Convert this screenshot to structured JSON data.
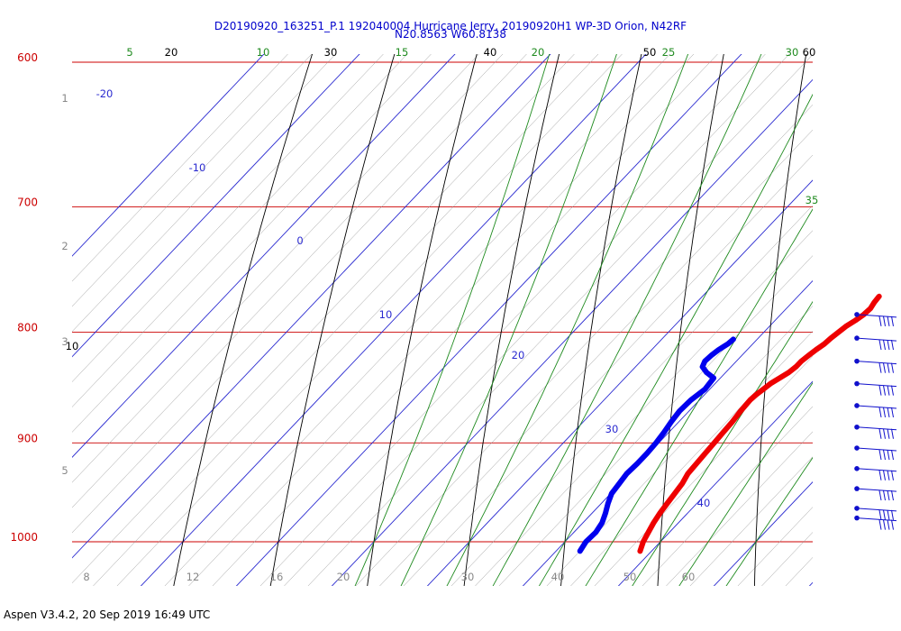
{
  "header": {
    "title_line1": "D20190920_163251_P.1 192040004 Hurricane Jerry, 20190920H1 WP-3D Orion, N42RF",
    "title_line2": "N20.8563 W60.8138"
  },
  "footer": {
    "version": "Aspen V3.4.2, 20 Sep 2019  16:49 UTC"
  },
  "chart_data": {
    "type": "skew-t",
    "pressure_levels": [
      "600",
      "700",
      "800",
      "900",
      "1000"
    ],
    "height_labels": [
      "1",
      "2",
      "3",
      "5"
    ],
    "temperature_ticks_bottom": [
      "8",
      "12",
      "16",
      "20",
      "30",
      "40",
      "50",
      "60"
    ],
    "isotherm_labels": [
      "-20",
      "-10",
      "0",
      "10",
      "20",
      "30",
      "40"
    ],
    "dry_adiabat_labels": [
      "10",
      "20",
      "30",
      "40",
      "50",
      "60"
    ],
    "moist_adiabat_labels": [
      "5",
      "10",
      "15",
      "20",
      "25",
      "30",
      "35"
    ],
    "temperature_profile": [
      {
        "p": 770,
        "t": 28.5
      },
      {
        "p": 775,
        "t": 28.6
      },
      {
        "p": 780,
        "t": 28.8
      },
      {
        "p": 785,
        "t": 28.7
      },
      {
        "p": 790,
        "t": 28.4
      },
      {
        "p": 795,
        "t": 28.0
      },
      {
        "p": 800,
        "t": 27.8
      },
      {
        "p": 805,
        "t": 27.6
      },
      {
        "p": 810,
        "t": 27.5
      },
      {
        "p": 815,
        "t": 27.2
      },
      {
        "p": 820,
        "t": 27.0
      },
      {
        "p": 825,
        "t": 26.8
      },
      {
        "p": 830,
        "t": 26.8
      },
      {
        "p": 835,
        "t": 26.6
      },
      {
        "p": 840,
        "t": 26.2
      },
      {
        "p": 845,
        "t": 25.8
      },
      {
        "p": 850,
        "t": 25.6
      },
      {
        "p": 855,
        "t": 25.4
      },
      {
        "p": 860,
        "t": 25.3
      },
      {
        "p": 870,
        "t": 25.4
      },
      {
        "p": 880,
        "t": 25.6
      },
      {
        "p": 890,
        "t": 25.7
      },
      {
        "p": 900,
        "t": 25.8
      },
      {
        "p": 910,
        "t": 25.9
      },
      {
        "p": 920,
        "t": 26.0
      },
      {
        "p": 930,
        "t": 26.1
      },
      {
        "p": 940,
        "t": 26.5
      },
      {
        "p": 950,
        "t": 26.7
      },
      {
        "p": 960,
        "t": 26.9
      },
      {
        "p": 970,
        "t": 27.1
      },
      {
        "p": 980,
        "t": 27.4
      },
      {
        "p": 990,
        "t": 27.8
      },
      {
        "p": 1000,
        "t": 28.2
      },
      {
        "p": 1010,
        "t": 28.8
      }
    ],
    "dewpoint_profile": [
      {
        "p": 806,
        "td": 17.5
      },
      {
        "p": 810,
        "td": 17.4
      },
      {
        "p": 815,
        "td": 17.0
      },
      {
        "p": 820,
        "td": 16.8
      },
      {
        "p": 825,
        "td": 16.7
      },
      {
        "p": 830,
        "td": 17.0
      },
      {
        "p": 835,
        "td": 18.0
      },
      {
        "p": 840,
        "td": 19.3
      },
      {
        "p": 850,
        "td": 19.5
      },
      {
        "p": 860,
        "td": 19.1
      },
      {
        "p": 870,
        "td": 19.0
      },
      {
        "p": 880,
        "td": 19.2
      },
      {
        "p": 890,
        "td": 19.5
      },
      {
        "p": 900,
        "td": 19.7
      },
      {
        "p": 910,
        "td": 19.8
      },
      {
        "p": 920,
        "td": 19.8
      },
      {
        "p": 930,
        "td": 19.7
      },
      {
        "p": 940,
        "td": 19.9
      },
      {
        "p": 950,
        "td": 20.1
      },
      {
        "p": 960,
        "td": 20.7
      },
      {
        "p": 970,
        "td": 21.4
      },
      {
        "p": 980,
        "td": 22.0
      },
      {
        "p": 990,
        "td": 22.3
      },
      {
        "p": 1000,
        "td": 22.2
      },
      {
        "p": 1010,
        "td": 22.5
      }
    ],
    "wind_barb_pressures": [
      785,
      805,
      825,
      845,
      865,
      885,
      905,
      925,
      945,
      965,
      975
    ]
  }
}
